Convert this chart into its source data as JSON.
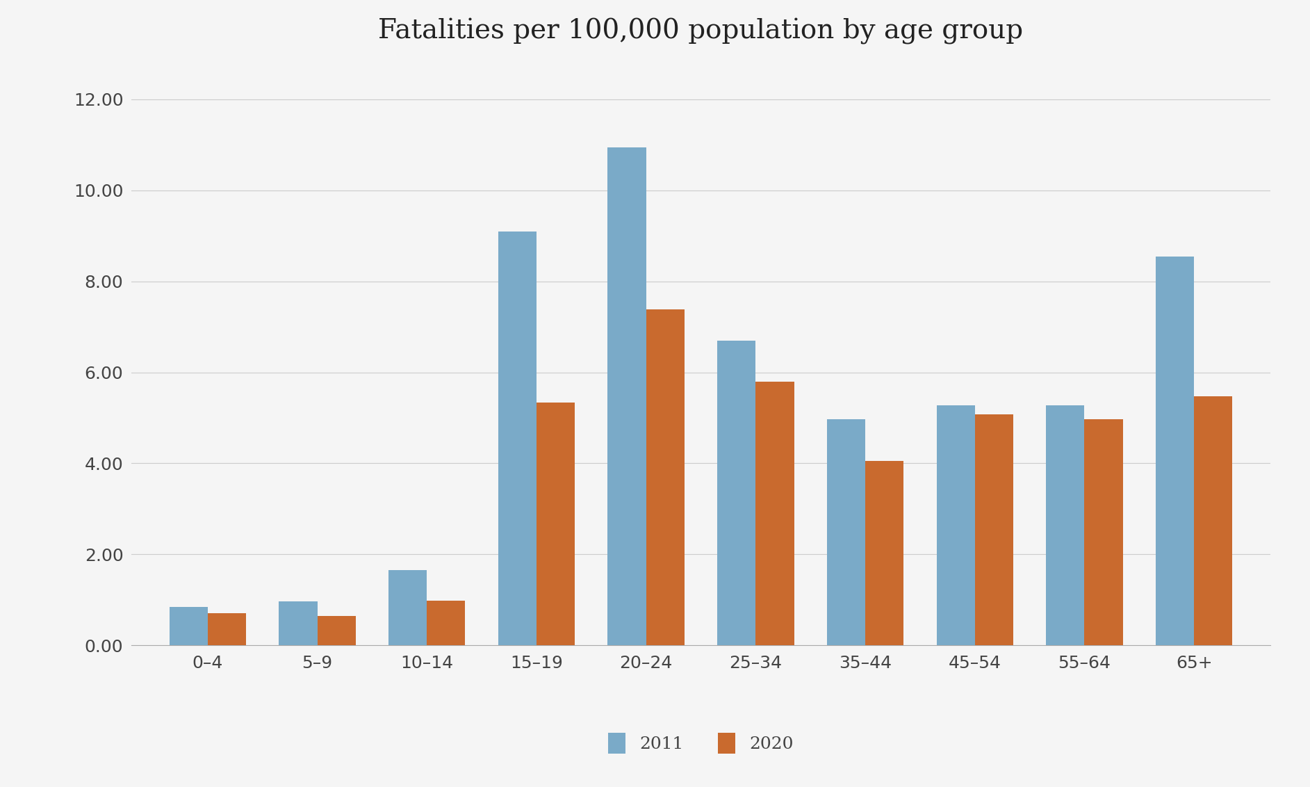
{
  "title": "Fatalities per 100,000 population by age group",
  "categories": [
    "0–4",
    "5–9",
    "10–14",
    "15–19",
    "20–24",
    "25–34",
    "35–44",
    "45–54",
    "55–64",
    "65+"
  ],
  "series": {
    "2011": [
      0.85,
      0.97,
      1.65,
      9.1,
      10.95,
      6.7,
      4.97,
      5.28,
      5.28,
      8.55
    ],
    "2020": [
      0.7,
      0.65,
      0.98,
      5.33,
      7.38,
      5.8,
      4.05,
      5.08,
      4.97,
      5.47
    ]
  },
  "colors": {
    "2011": "#7aaac8",
    "2020": "#c96a2e"
  },
  "ylim": [
    0,
    12.8
  ],
  "yticks": [
    0.0,
    2.0,
    4.0,
    6.0,
    8.0,
    10.0,
    12.0
  ],
  "ytick_labels": [
    "0.00",
    "2.00",
    "4.00",
    "6.00",
    "8.00",
    "10.00",
    "12.00"
  ],
  "bar_width": 0.35,
  "background_color": "#f5f5f5",
  "grid_color": "#cccccc",
  "title_fontsize": 28,
  "tick_fontsize": 18,
  "legend_fontsize": 18
}
